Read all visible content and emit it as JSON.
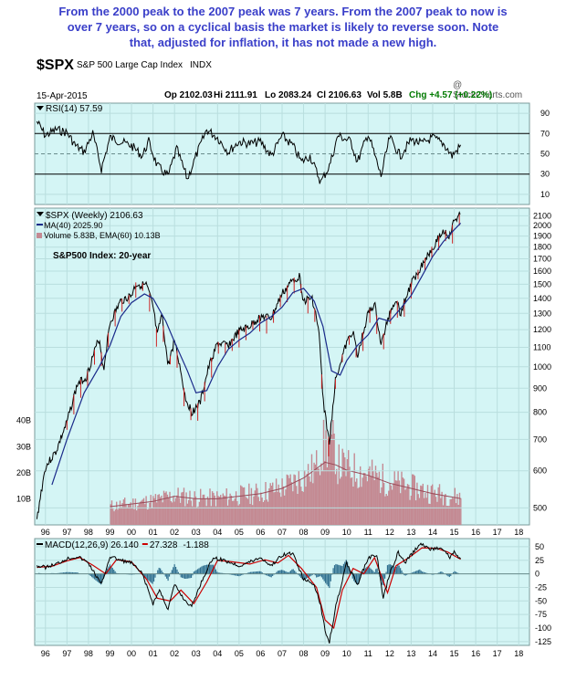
{
  "annotation": [
    "From the 2000 peak to the 2007 peak was 7 years. From the 2007 peak to now is",
    "over 7 years, so on a cyclical basis the market is likely to reverse soon. Note",
    "that, adjusted for inflation, it has not made a new high."
  ],
  "header": {
    "symbol": "$SPX",
    "name": "S&P 500 Large Cap Index",
    "exchange": "INDX",
    "date": "15-Apr-2015",
    "watermark": "@ StockCharts.com",
    "op": "Op 2102.03",
    "hi": "Hi 2111.91",
    "lo": "Lo 2083.24",
    "cl": "Cl 2106.63",
    "vol": "Vol 5.8B",
    "chg": "Chg +4.57 (+0.22%)",
    "chg_color": "#007a00"
  },
  "colors": {
    "panel_bg": "#d4f5f5",
    "grid": "#b9dede",
    "price": "#000000",
    "ma": "#1a2a8a",
    "volume": "#c48a93",
    "macd": "#000000",
    "signal": "#cc0000",
    "hist": "#2f6f8f",
    "rsi": "#000000",
    "main_title": "#2d2fa8"
  },
  "chart_data": {
    "type": "line",
    "title": "S&P500 Index: 20-year",
    "x_ticks": [
      "96",
      "97",
      "98",
      "99",
      "00",
      "01",
      "02",
      "03",
      "04",
      "05",
      "06",
      "07",
      "08",
      "09",
      "10",
      "11",
      "12",
      "13",
      "14",
      "15",
      "16",
      "17",
      "18"
    ],
    "x_range": [
      1995.5,
      2018.5
    ],
    "rsi": {
      "label": "RSI(14) 57.59",
      "levels": [
        90,
        70,
        50,
        30,
        10
      ],
      "ylim": [
        0,
        100
      ],
      "points": [
        [
          1995.6,
          82
        ],
        [
          1996.0,
          68
        ],
        [
          1996.5,
          74
        ],
        [
          1997.0,
          71
        ],
        [
          1997.4,
          58
        ],
        [
          1997.8,
          52
        ],
        [
          1998.2,
          70
        ],
        [
          1998.6,
          35
        ],
        [
          1999.0,
          66
        ],
        [
          1999.5,
          62
        ],
        [
          2000.0,
          58
        ],
        [
          2000.5,
          48
        ],
        [
          2000.8,
          62
        ],
        [
          2001.2,
          38
        ],
        [
          2001.7,
          28
        ],
        [
          2002.1,
          55
        ],
        [
          2002.6,
          25
        ],
        [
          2003.0,
          48
        ],
        [
          2003.5,
          74
        ],
        [
          2004.0,
          66
        ],
        [
          2004.5,
          52
        ],
        [
          2005.0,
          62
        ],
        [
          2005.5,
          60
        ],
        [
          2006.0,
          62
        ],
        [
          2006.5,
          48
        ],
        [
          2007.0,
          68
        ],
        [
          2007.5,
          58
        ],
        [
          2007.9,
          42
        ],
        [
          2008.3,
          48
        ],
        [
          2008.8,
          22
        ],
        [
          2009.2,
          38
        ],
        [
          2009.6,
          68
        ],
        [
          2010.2,
          62
        ],
        [
          2010.5,
          42
        ],
        [
          2011.0,
          70
        ],
        [
          2011.6,
          28
        ],
        [
          2012.0,
          66
        ],
        [
          2012.5,
          48
        ],
        [
          2013.0,
          64
        ],
        [
          2013.5,
          60
        ],
        [
          2014.0,
          66
        ],
        [
          2014.5,
          60
        ],
        [
          2014.9,
          48
        ],
        [
          2015.3,
          58
        ]
      ]
    },
    "price": {
      "legend_price": "$SPX (Weekly) 2106.63",
      "legend_ma": "MA(40) 2025.90",
      "legend_volume": "Volume 5.83B, EMA(60) 10.13B",
      "y_ticks": [
        2100,
        2000,
        1900,
        1800,
        1700,
        1600,
        1500,
        1400,
        1300,
        1200,
        1100,
        1000,
        900,
        800,
        700,
        600,
        500
      ],
      "ylim": [
        460,
        2180
      ],
      "log_scale": true,
      "points": [
        [
          1995.6,
          470
        ],
        [
          1996.0,
          610
        ],
        [
          1996.5,
          660
        ],
        [
          1997.0,
          760
        ],
        [
          1997.5,
          920
        ],
        [
          1997.9,
          950
        ],
        [
          1998.5,
          1150
        ],
        [
          1998.7,
          980
        ],
        [
          1999.0,
          1240
        ],
        [
          1999.5,
          1380
        ],
        [
          2000.0,
          1420
        ],
        [
          2000.2,
          1500
        ],
        [
          2000.7,
          1490
        ],
        [
          2001.0,
          1340
        ],
        [
          2001.2,
          1160
        ],
        [
          2001.4,
          1290
        ],
        [
          2001.7,
          1000
        ],
        [
          2002.0,
          1140
        ],
        [
          2002.5,
          860
        ],
        [
          2002.8,
          800
        ],
        [
          2003.2,
          840
        ],
        [
          2003.6,
          1000
        ],
        [
          2004.0,
          1120
        ],
        [
          2004.5,
          1110
        ],
        [
          2005.0,
          1190
        ],
        [
          2005.5,
          1220
        ],
        [
          2006.0,
          1280
        ],
        [
          2006.5,
          1270
        ],
        [
          2007.0,
          1430
        ],
        [
          2007.5,
          1530
        ],
        [
          2007.8,
          1560
        ],
        [
          2008.0,
          1380
        ],
        [
          2008.4,
          1400
        ],
        [
          2008.7,
          1200
        ],
        [
          2008.9,
          850
        ],
        [
          2009.2,
          680
        ],
        [
          2009.5,
          950
        ],
        [
          2010.0,
          1120
        ],
        [
          2010.3,
          1200
        ],
        [
          2010.5,
          1040
        ],
        [
          2011.0,
          1300
        ],
        [
          2011.3,
          1360
        ],
        [
          2011.6,
          1110
        ],
        [
          2012.0,
          1300
        ],
        [
          2012.3,
          1400
        ],
        [
          2012.5,
          1300
        ],
        [
          2013.0,
          1500
        ],
        [
          2013.5,
          1650
        ],
        [
          2014.0,
          1800
        ],
        [
          2014.5,
          1950
        ],
        [
          2014.8,
          1900
        ],
        [
          2015.0,
          2050
        ],
        [
          2015.3,
          2106
        ]
      ],
      "ma40": [
        [
          1996.3,
          560
        ],
        [
          1997.0,
          700
        ],
        [
          1997.8,
          880
        ],
        [
          1998.5,
          1000
        ],
        [
          1999.0,
          1110
        ],
        [
          1999.5,
          1280
        ],
        [
          2000.0,
          1370
        ],
        [
          2000.6,
          1430
        ],
        [
          2001.0,
          1400
        ],
        [
          2001.6,
          1250
        ],
        [
          2002.0,
          1130
        ],
        [
          2002.6,
          980
        ],
        [
          2003.0,
          880
        ],
        [
          2003.5,
          890
        ],
        [
          2004.0,
          1000
        ],
        [
          2004.5,
          1090
        ],
        [
          2005.0,
          1140
        ],
        [
          2005.5,
          1180
        ],
        [
          2006.0,
          1240
        ],
        [
          2006.5,
          1280
        ],
        [
          2007.0,
          1340
        ],
        [
          2007.5,
          1440
        ],
        [
          2008.0,
          1470
        ],
        [
          2008.5,
          1380
        ],
        [
          2008.9,
          1220
        ],
        [
          2009.3,
          980
        ],
        [
          2009.7,
          960
        ],
        [
          2010.0,
          1030
        ],
        [
          2010.5,
          1110
        ],
        [
          2011.0,
          1170
        ],
        [
          2011.5,
          1270
        ],
        [
          2012.0,
          1250
        ],
        [
          2012.5,
          1330
        ],
        [
          2013.0,
          1420
        ],
        [
          2013.5,
          1560
        ],
        [
          2014.0,
          1720
        ],
        [
          2014.5,
          1850
        ],
        [
          2015.0,
          1960
        ],
        [
          2015.3,
          2025
        ]
      ]
    },
    "volume": {
      "y_ticks": [
        "40B",
        "30B",
        "20B",
        "10B"
      ],
      "tick_values": [
        40,
        30,
        20,
        10
      ],
      "ylim": [
        0,
        42
      ],
      "ema": [
        [
          1999.0,
          7
        ],
        [
          2000.0,
          8
        ],
        [
          2001.0,
          9
        ],
        [
          2002.0,
          11
        ],
        [
          2003.0,
          10
        ],
        [
          2004.0,
          10
        ],
        [
          2005.0,
          11
        ],
        [
          2006.0,
          12
        ],
        [
          2007.0,
          14
        ],
        [
          2008.0,
          18
        ],
        [
          2009.0,
          24
        ],
        [
          2009.5,
          23
        ],
        [
          2010.0,
          21
        ],
        [
          2011.0,
          19
        ],
        [
          2012.0,
          16
        ],
        [
          2013.0,
          14
        ],
        [
          2014.0,
          12
        ],
        [
          2015.3,
          10.1
        ]
      ]
    },
    "macd": {
      "label_macd": "MACD(12,26,9) 26.140",
      "label_signal": "27.328",
      "label_hist": "-1.188",
      "y_ticks": [
        50,
        25,
        0,
        -25,
        -50,
        -75,
        -100,
        -125
      ],
      "ylim": [
        -132,
        65
      ],
      "macd_points": [
        [
          1995.6,
          15
        ],
        [
          1996.0,
          12
        ],
        [
          1996.5,
          18
        ],
        [
          1997.0,
          28
        ],
        [
          1997.5,
          32
        ],
        [
          1998.0,
          20
        ],
        [
          1998.6,
          -20
        ],
        [
          1999.0,
          32
        ],
        [
          1999.5,
          25
        ],
        [
          2000.0,
          20
        ],
        [
          2000.5,
          0
        ],
        [
          2001.0,
          -55
        ],
        [
          2001.3,
          -30
        ],
        [
          2001.7,
          -65
        ],
        [
          2002.0,
          -20
        ],
        [
          2002.5,
          -50
        ],
        [
          2002.8,
          -60
        ],
        [
          2003.3,
          -10
        ],
        [
          2003.8,
          30
        ],
        [
          2004.3,
          25
        ],
        [
          2005.0,
          15
        ],
        [
          2005.5,
          22
        ],
        [
          2006.0,
          30
        ],
        [
          2006.5,
          15
        ],
        [
          2007.0,
          35
        ],
        [
          2007.5,
          38
        ],
        [
          2008.0,
          -10
        ],
        [
          2008.5,
          -20
        ],
        [
          2008.8,
          -60
        ],
        [
          2009.0,
          -105
        ],
        [
          2009.2,
          -125
        ],
        [
          2009.5,
          -60
        ],
        [
          2010.0,
          20
        ],
        [
          2010.5,
          -20
        ],
        [
          2011.0,
          30
        ],
        [
          2011.4,
          35
        ],
        [
          2011.7,
          -45
        ],
        [
          2012.0,
          0
        ],
        [
          2012.4,
          40
        ],
        [
          2012.7,
          20
        ],
        [
          2013.0,
          35
        ],
        [
          2013.4,
          55
        ],
        [
          2014.0,
          45
        ],
        [
          2014.4,
          50
        ],
        [
          2014.8,
          30
        ],
        [
          2015.0,
          40
        ],
        [
          2015.3,
          26
        ]
      ],
      "signal_points": [
        [
          1995.6,
          12
        ],
        [
          1996.3,
          14
        ],
        [
          1997.0,
          24
        ],
        [
          1997.6,
          30
        ],
        [
          1998.2,
          16
        ],
        [
          1998.8,
          0
        ],
        [
          1999.3,
          26
        ],
        [
          2000.0,
          22
        ],
        [
          2000.7,
          -10
        ],
        [
          2001.2,
          -45
        ],
        [
          2001.8,
          -50
        ],
        [
          2002.3,
          -30
        ],
        [
          2002.9,
          -55
        ],
        [
          2003.5,
          -15
        ],
        [
          2004.0,
          25
        ],
        [
          2004.7,
          22
        ],
        [
          2005.5,
          18
        ],
        [
          2006.2,
          26
        ],
        [
          2006.8,
          20
        ],
        [
          2007.3,
          34
        ],
        [
          2007.9,
          10
        ],
        [
          2008.6,
          -25
        ],
        [
          2009.0,
          -85
        ],
        [
          2009.4,
          -100
        ],
        [
          2009.8,
          -30
        ],
        [
          2010.3,
          10
        ],
        [
          2010.8,
          0
        ],
        [
          2011.3,
          30
        ],
        [
          2011.9,
          -35
        ],
        [
          2012.3,
          15
        ],
        [
          2012.9,
          30
        ],
        [
          2013.5,
          48
        ],
        [
          2014.2,
          47
        ],
        [
          2014.7,
          40
        ],
        [
          2015.3,
          27
        ]
      ]
    }
  }
}
